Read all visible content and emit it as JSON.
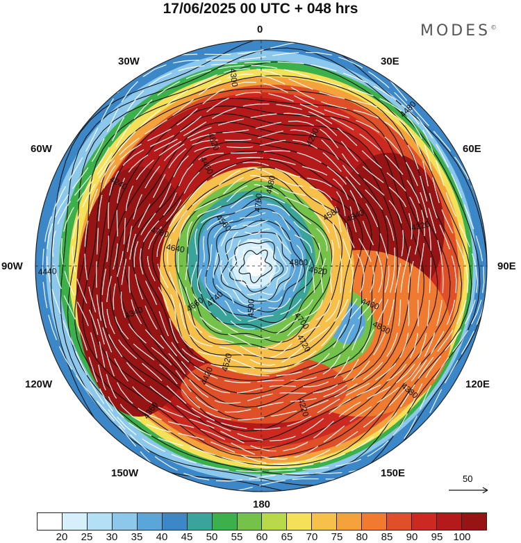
{
  "title": "17/06/2025  00 UTC  + 048 hrs",
  "brand": "MODES",
  "brand_mark": "©",
  "longitude_labels": {
    "n": "0",
    "e30": "30E",
    "e60": "60E",
    "e90": "90E",
    "e120": "120E",
    "e150": "150E",
    "s": "180",
    "w150": "150W",
    "w120": "120W",
    "w90": "90W",
    "w60": "60W",
    "w30": "30W"
  },
  "reference_vector": {
    "label": "50"
  },
  "colorbar": {
    "colors": [
      "#ffffff",
      "#d6f0fb",
      "#b4e0f5",
      "#8cc8ec",
      "#5aa6da",
      "#3c87c8",
      "#3aa39a",
      "#3cb04a",
      "#74c24a",
      "#b8d94a",
      "#f5e05a",
      "#f7c04a",
      "#f4a23c",
      "#ef7a30",
      "#e05028",
      "#cc2a20",
      "#b41a1a",
      "#961414"
    ],
    "ticks": [
      "20",
      "25",
      "30",
      "35",
      "40",
      "45",
      "50",
      "55",
      "60",
      "65",
      "70",
      "75",
      "80",
      "85",
      "90",
      "95",
      "100"
    ]
  },
  "contour_labels": [
    "4800",
    "4740",
    "4760",
    "4700",
    "4640",
    "4580",
    "4520",
    "4460",
    "4400",
    "4340",
    "4280",
    "4220",
    "4240",
    "4320",
    "4360",
    "4300",
    "4380",
    "4440",
    "4480",
    "4500",
    "4560",
    "4620",
    "4660",
    "4680",
    "4720",
    "4780",
    "4540",
    "4420",
    "4820",
    "4830"
  ]
}
